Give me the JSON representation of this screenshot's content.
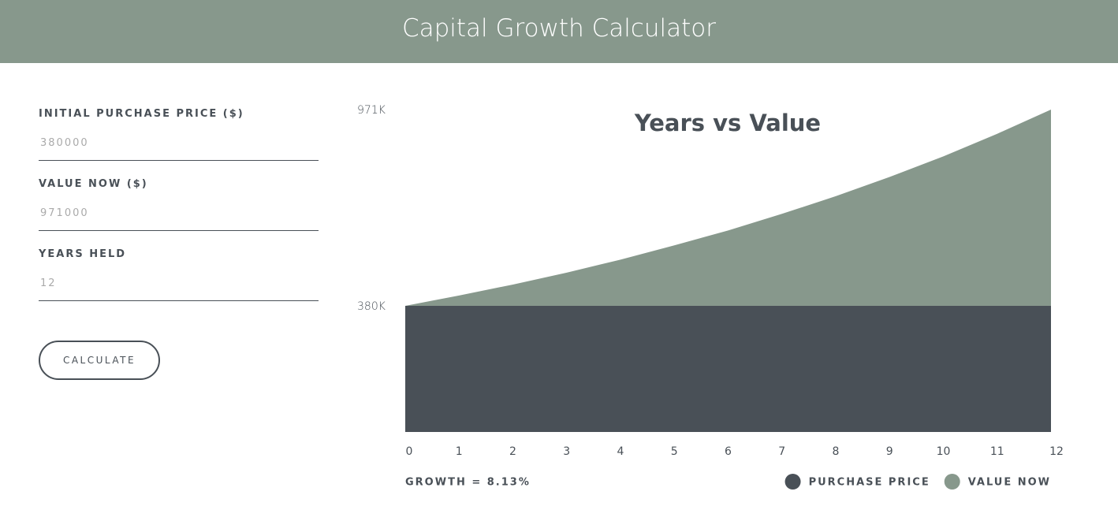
{
  "header": {
    "title": "Capital Growth Calculator"
  },
  "form": {
    "fields": [
      {
        "label": "INITIAL PURCHASE PRICE ($)",
        "value": "380000"
      },
      {
        "label": "VALUE NOW ($)",
        "value": "971000"
      },
      {
        "label": "YEARS HELD",
        "value": "12"
      }
    ],
    "button": "CALCULATE"
  },
  "chart_data": {
    "type": "area",
    "title": "Years vs Value",
    "x": [
      0,
      1,
      2,
      3,
      4,
      5,
      6,
      7,
      8,
      9,
      10,
      11,
      12
    ],
    "series": [
      {
        "name": "PURCHASE PRICE",
        "color": "#495057",
        "values": [
          380000,
          380000,
          380000,
          380000,
          380000,
          380000,
          380000,
          380000,
          380000,
          380000,
          380000,
          380000,
          380000
        ]
      },
      {
        "name": "VALUE NOW",
        "color": "#87988c",
        "values": [
          380000,
          411000,
          444000,
          480000,
          519000,
          562000,
          607000,
          657000,
          710000,
          768000,
          830000,
          898000,
          971000
        ]
      }
    ],
    "xlim": [
      0,
      12
    ],
    "xticks": [
      0,
      1,
      2,
      3,
      4,
      5,
      6,
      7,
      8,
      9,
      10,
      11,
      12
    ],
    "ylim": [
      0,
      971000
    ],
    "yticks": [
      {
        "value": 380000,
        "label": "380K"
      },
      {
        "value": 971000,
        "label": "971K"
      }
    ],
    "footnote": "GROWTH = 8.13%",
    "legend": "bottom-right"
  }
}
